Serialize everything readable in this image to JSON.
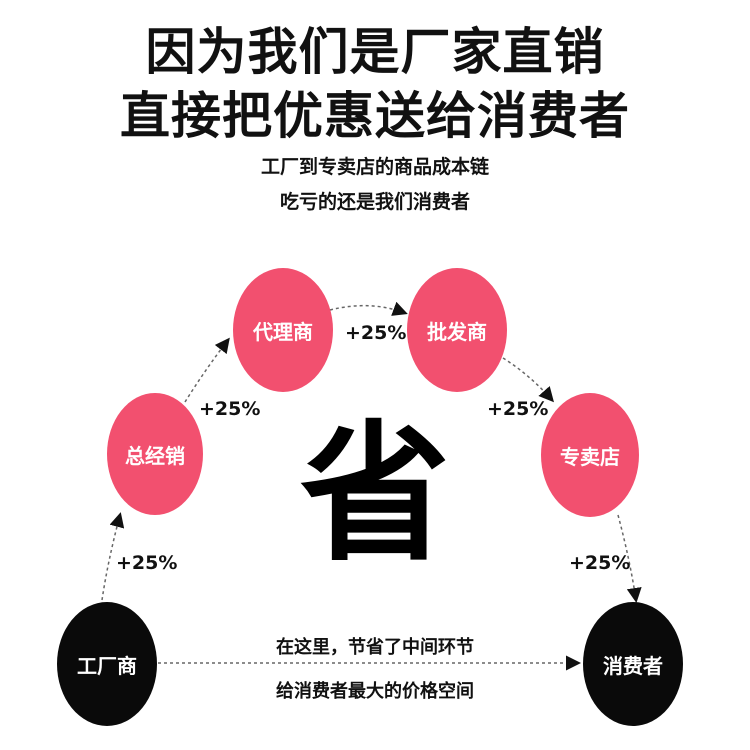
{
  "headline": {
    "line1": "因为我们是厂家直销",
    "line2": "直接把优惠送给消费者"
  },
  "subheadline": {
    "line1": "工厂到专卖店的商品成本链",
    "line2": "吃亏的还是我们消费者"
  },
  "nodes": {
    "factory": "工厂商",
    "distributor": "总经销",
    "agent": "代理商",
    "wholesaler": "批发商",
    "store": "专卖店",
    "consumer": "消费者"
  },
  "markup": "+25%",
  "center_char": "省",
  "savings": {
    "line1": "在这里，节省了中间环节",
    "line2": "给消费者最大的价格空间"
  },
  "colors": {
    "pink": "#f2506f",
    "black": "#0a0a0a"
  }
}
